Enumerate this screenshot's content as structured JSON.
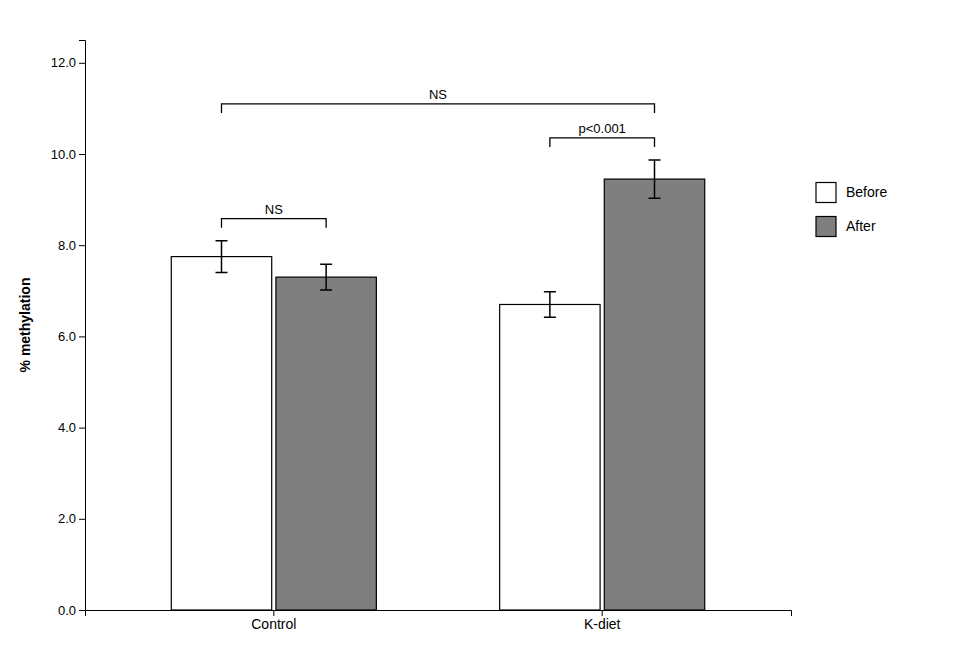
{
  "chart_data": {
    "type": "bar",
    "categories": [
      "Control",
      "K-diet"
    ],
    "series": [
      {
        "name": "Before",
        "color": "#ffffff",
        "values": [
          7.75,
          6.7
        ],
        "errors": [
          0.35,
          0.28
        ]
      },
      {
        "name": "After",
        "color": "#7f7f7f",
        "values": [
          7.3,
          9.45
        ],
        "errors": [
          0.28,
          0.42
        ]
      }
    ],
    "y_label": "% methylation",
    "ylim": [
      0,
      12.5
    ],
    "yticks": [
      {
        "value": 0.0,
        "label": "0.0"
      },
      {
        "value": 2.0,
        "label": "2.0"
      },
      {
        "value": 4.0,
        "label": "4.0"
      },
      {
        "value": 6.0,
        "label": "6.0"
      },
      {
        "value": 8.0,
        "label": "8.0"
      },
      {
        "value": 10.0,
        "label": "10.0"
      },
      {
        "value": 12.0,
        "label": "12.0"
      }
    ],
    "legend": "right",
    "annotations": [
      {
        "text": "NS",
        "from": {
          "category": "Control",
          "series": "Before"
        },
        "to": {
          "category": "Control",
          "series": "After"
        }
      },
      {
        "text": "p<0.001",
        "from": {
          "category": "K-diet",
          "series": "Before"
        },
        "to": {
          "category": "K-diet",
          "series": "After"
        }
      },
      {
        "text": "NS",
        "from": {
          "category": "Control",
          "series": "Before"
        },
        "to": {
          "category": "K-diet",
          "series": "After"
        }
      }
    ]
  }
}
